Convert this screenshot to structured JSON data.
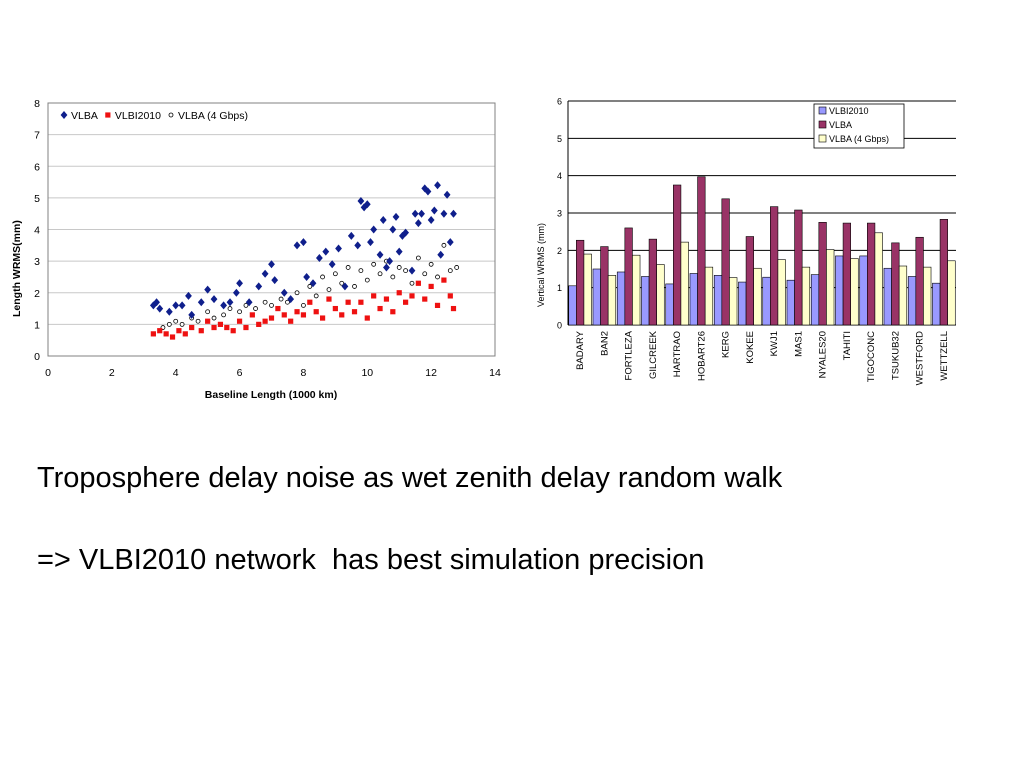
{
  "slide": {
    "line1": "Troposphere delay noise as wet zenith delay random walk",
    "line2": "=> VLBI2010 network  has best simulation precision"
  },
  "chart_data": [
    {
      "type": "scatter",
      "title": "",
      "xlabel": "Baseline Length (1000 km)",
      "ylabel": "Length WRMS(mm)",
      "xlim": [
        0,
        14
      ],
      "ylim": [
        0,
        8
      ],
      "xticks": [
        0,
        2,
        4,
        6,
        8,
        10,
        12,
        14
      ],
      "yticks": [
        0,
        1,
        2,
        3,
        4,
        5,
        6,
        7,
        8
      ],
      "grid": "horizontal",
      "legend_position": "top-left",
      "series": [
        {
          "name": "VLBA",
          "color": "#0f1f8c",
          "marker": "diamond",
          "points": [
            [
              3.3,
              1.6
            ],
            [
              3.4,
              1.7
            ],
            [
              3.5,
              1.5
            ],
            [
              3.8,
              1.4
            ],
            [
              4.0,
              1.6
            ],
            [
              4.2,
              1.6
            ],
            [
              4.4,
              1.9
            ],
            [
              4.5,
              1.3
            ],
            [
              4.8,
              1.7
            ],
            [
              5.0,
              2.1
            ],
            [
              5.2,
              1.8
            ],
            [
              5.5,
              1.6
            ],
            [
              5.7,
              1.7
            ],
            [
              5.9,
              2.0
            ],
            [
              6.0,
              2.3
            ],
            [
              6.3,
              1.7
            ],
            [
              6.6,
              2.2
            ],
            [
              6.8,
              2.6
            ],
            [
              7.0,
              2.9
            ],
            [
              7.1,
              2.4
            ],
            [
              7.4,
              2.0
            ],
            [
              7.6,
              1.8
            ],
            [
              7.8,
              3.5
            ],
            [
              8.0,
              3.6
            ],
            [
              8.1,
              2.5
            ],
            [
              8.3,
              2.3
            ],
            [
              8.5,
              3.1
            ],
            [
              8.7,
              3.3
            ],
            [
              8.9,
              2.9
            ],
            [
              9.1,
              3.4
            ],
            [
              9.3,
              2.2
            ],
            [
              9.5,
              3.8
            ],
            [
              9.7,
              3.5
            ],
            [
              9.8,
              4.9
            ],
            [
              9.9,
              4.7
            ],
            [
              10.0,
              4.8
            ],
            [
              10.1,
              3.6
            ],
            [
              10.2,
              4.0
            ],
            [
              10.4,
              3.2
            ],
            [
              10.5,
              4.3
            ],
            [
              10.6,
              2.8
            ],
            [
              10.7,
              3.0
            ],
            [
              10.8,
              4.0
            ],
            [
              10.9,
              4.4
            ],
            [
              11.0,
              3.3
            ],
            [
              11.1,
              3.8
            ],
            [
              11.2,
              3.9
            ],
            [
              11.4,
              2.7
            ],
            [
              11.5,
              4.5
            ],
            [
              11.6,
              4.2
            ],
            [
              11.7,
              4.5
            ],
            [
              11.8,
              5.3
            ],
            [
              11.9,
              5.2
            ],
            [
              12.0,
              4.3
            ],
            [
              12.1,
              4.6
            ],
            [
              12.2,
              5.4
            ],
            [
              12.3,
              3.2
            ],
            [
              12.4,
              4.5
            ],
            [
              12.5,
              5.1
            ],
            [
              12.6,
              3.6
            ],
            [
              12.7,
              4.5
            ]
          ]
        },
        {
          "name": "VLBI2010",
          "color": "#ee1111",
          "marker": "square",
          "points": [
            [
              3.3,
              0.7
            ],
            [
              3.5,
              0.8
            ],
            [
              3.7,
              0.7
            ],
            [
              3.9,
              0.6
            ],
            [
              4.1,
              0.8
            ],
            [
              4.3,
              0.7
            ],
            [
              4.5,
              0.9
            ],
            [
              4.8,
              0.8
            ],
            [
              5.0,
              1.1
            ],
            [
              5.2,
              0.9
            ],
            [
              5.4,
              1.0
            ],
            [
              5.6,
              0.9
            ],
            [
              5.8,
              0.8
            ],
            [
              6.0,
              1.1
            ],
            [
              6.2,
              0.9
            ],
            [
              6.4,
              1.3
            ],
            [
              6.6,
              1.0
            ],
            [
              6.8,
              1.1
            ],
            [
              7.0,
              1.2
            ],
            [
              7.2,
              1.5
            ],
            [
              7.4,
              1.3
            ],
            [
              7.6,
              1.1
            ],
            [
              7.8,
              1.4
            ],
            [
              8.0,
              1.3
            ],
            [
              8.2,
              1.7
            ],
            [
              8.4,
              1.4
            ],
            [
              8.6,
              1.2
            ],
            [
              8.8,
              1.8
            ],
            [
              9.0,
              1.5
            ],
            [
              9.2,
              1.3
            ],
            [
              9.4,
              1.7
            ],
            [
              9.6,
              1.4
            ],
            [
              9.8,
              1.7
            ],
            [
              10.0,
              1.2
            ],
            [
              10.2,
              1.9
            ],
            [
              10.4,
              1.5
            ],
            [
              10.6,
              1.8
            ],
            [
              10.8,
              1.4
            ],
            [
              11.0,
              2.0
            ],
            [
              11.2,
              1.7
            ],
            [
              11.4,
              1.9
            ],
            [
              11.6,
              2.3
            ],
            [
              11.8,
              1.8
            ],
            [
              12.0,
              2.2
            ],
            [
              12.2,
              1.6
            ],
            [
              12.4,
              2.4
            ],
            [
              12.6,
              1.9
            ],
            [
              12.7,
              1.5
            ]
          ]
        },
        {
          "name": "VLBA (4 Gbps)",
          "color": "#000000",
          "marker": "circle-open",
          "points": [
            [
              3.3,
              0.7
            ],
            [
              3.6,
              0.9
            ],
            [
              3.8,
              1.0
            ],
            [
              4.0,
              1.1
            ],
            [
              4.2,
              1.0
            ],
            [
              4.5,
              1.2
            ],
            [
              4.7,
              1.1
            ],
            [
              5.0,
              1.4
            ],
            [
              5.2,
              1.2
            ],
            [
              5.5,
              1.3
            ],
            [
              5.7,
              1.5
            ],
            [
              6.0,
              1.4
            ],
            [
              6.2,
              1.6
            ],
            [
              6.5,
              1.5
            ],
            [
              6.8,
              1.7
            ],
            [
              7.0,
              1.6
            ],
            [
              7.3,
              1.8
            ],
            [
              7.5,
              1.7
            ],
            [
              7.8,
              2.0
            ],
            [
              8.0,
              1.6
            ],
            [
              8.2,
              2.2
            ],
            [
              8.4,
              1.9
            ],
            [
              8.6,
              2.5
            ],
            [
              8.8,
              2.1
            ],
            [
              9.0,
              2.6
            ],
            [
              9.2,
              2.3
            ],
            [
              9.4,
              2.8
            ],
            [
              9.6,
              2.2
            ],
            [
              9.8,
              2.7
            ],
            [
              10.0,
              2.4
            ],
            [
              10.2,
              2.9
            ],
            [
              10.4,
              2.6
            ],
            [
              10.6,
              3.0
            ],
            [
              10.8,
              2.5
            ],
            [
              11.0,
              2.8
            ],
            [
              11.2,
              2.7
            ],
            [
              11.4,
              2.3
            ],
            [
              11.6,
              3.1
            ],
            [
              11.8,
              2.6
            ],
            [
              12.0,
              2.9
            ],
            [
              12.2,
              2.5
            ],
            [
              12.4,
              3.5
            ],
            [
              12.6,
              2.7
            ],
            [
              12.8,
              2.8
            ]
          ]
        }
      ]
    },
    {
      "type": "bar",
      "title": "",
      "xlabel": "",
      "ylabel": "Vertical WRMS (mm)",
      "ylim": [
        0,
        6
      ],
      "yticks": [
        0,
        1,
        2,
        3,
        4,
        5,
        6
      ],
      "grid": "horizontal",
      "legend_position": "top-right",
      "categories": [
        "BADARY",
        "BAN2",
        "FORTLEZA",
        "GILCREEK",
        "HARTRAO",
        "HOBART26",
        "KERG",
        "KOKEE",
        "KWJ1",
        "MAS1",
        "NYALES20",
        "TAHITI",
        "TIGOCONC",
        "TSUKUB32",
        "WESTFORD",
        "WETTZELL"
      ],
      "series": [
        {
          "name": "VLBI2010",
          "color": "#9999ff",
          "values": [
            1.05,
            1.5,
            1.42,
            1.3,
            1.1,
            1.38,
            1.33,
            1.15,
            1.28,
            1.2,
            1.35,
            1.85,
            1.85,
            1.52,
            1.3,
            1.12
          ]
        },
        {
          "name": "VLBA",
          "color": "#993366",
          "values": [
            2.27,
            2.1,
            2.6,
            2.3,
            3.75,
            3.97,
            3.38,
            2.37,
            3.17,
            3.08,
            2.75,
            2.73,
            2.73,
            2.2,
            2.35,
            2.83
          ]
        },
        {
          "name": "VLBA (4 Gbps)",
          "color": "#ffffcc",
          "values": [
            1.9,
            1.33,
            1.87,
            1.62,
            2.22,
            1.55,
            1.27,
            1.52,
            1.75,
            1.55,
            2.02,
            1.78,
            2.47,
            1.58,
            1.55,
            1.72
          ]
        }
      ]
    }
  ]
}
